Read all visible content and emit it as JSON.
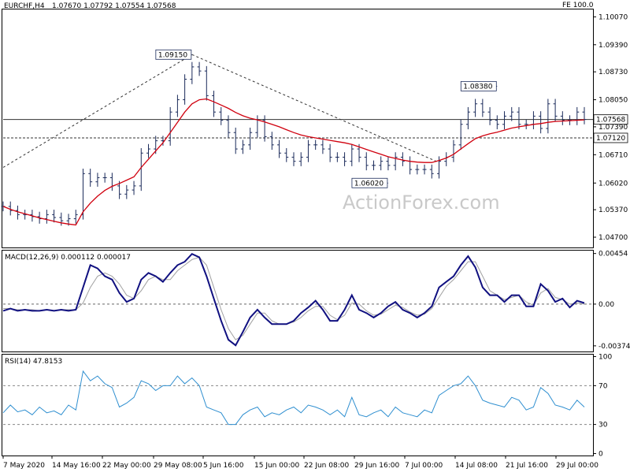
{
  "header": {
    "symbol": "EURCHF,H4",
    "ohlc": "1.07670 1.07792 1.07554 1.07568",
    "corner": "FE 100.0"
  },
  "watermark": "ActionForex.com",
  "colors": {
    "price": "#1a2a5a",
    "ma": "#d0000e",
    "macd": "#101080",
    "signal": "#a0a0a0",
    "rsi": "#2f8fd0",
    "levelLine": "#333333"
  },
  "chart_data": [
    {
      "type": "line",
      "panel": "price",
      "ylim": [
        1.0445,
        1.1025
      ],
      "y_ticks": [
        "1.10070",
        "1.09390",
        "1.08730",
        "1.08050",
        "1.07390",
        "1.06710",
        "1.06020",
        "1.05370",
        "1.04700"
      ],
      "annotations": [
        {
          "label": "1.09150",
          "value": 1.0915
        },
        {
          "label": "1.08380",
          "value": 1.0838
        },
        {
          "label": "1.06020",
          "value": 1.0602
        }
      ],
      "levels": [
        {
          "label": "1.07568",
          "value": 1.07568
        },
        {
          "label": "1.07120",
          "value": 1.0712
        }
      ],
      "series": [
        {
          "values": [
            1.0545,
            1.0535,
            1.0525,
            1.0525,
            1.052,
            1.0515,
            1.0525,
            1.0518,
            1.051,
            1.0515,
            1.0525,
            1.0625,
            1.0605,
            1.0615,
            1.0615,
            1.0595,
            1.0575,
            1.0585,
            1.0595,
            1.0675,
            1.0685,
            1.0705,
            1.0705,
            1.0775,
            1.0805,
            1.0855,
            1.0885,
            1.0875,
            1.0815,
            1.0775,
            1.0755,
            1.0725,
            1.0685,
            1.0695,
            1.0725,
            1.0755,
            1.0715,
            1.0695,
            1.0675,
            1.0665,
            1.0655,
            1.0665,
            1.0695,
            1.0695,
            1.0685,
            1.0665,
            1.0665,
            1.0655,
            1.0685,
            1.0665,
            1.0645,
            1.0645,
            1.0655,
            1.0645,
            1.0665,
            1.0655,
            1.0635,
            1.0635,
            1.0635,
            1.0625,
            1.0655,
            1.0665,
            1.0695,
            1.0745,
            1.0775,
            1.0795,
            1.0775,
            1.0755,
            1.0745,
            1.0765,
            1.0775,
            1.0745,
            1.0745,
            1.0765,
            1.0735,
            1.0795,
            1.0765,
            1.0755,
            1.0755,
            1.0775,
            1.0757
          ]
        },
        {
          "values": [
            1.0545,
            1.0538,
            1.0532,
            1.0527,
            1.0522,
            1.0517,
            1.0513,
            1.0509,
            1.0505,
            1.0502,
            1.05,
            1.0532,
            1.0553,
            1.057,
            1.0584,
            1.0594,
            1.0601,
            1.0609,
            1.0617,
            1.064,
            1.066,
            1.068,
            1.07,
            1.0725,
            1.075,
            1.0775,
            1.0795,
            1.0805,
            1.0807,
            1.08,
            1.0792,
            1.0784,
            1.0774,
            1.0766,
            1.076,
            1.0756,
            1.0751,
            1.0745,
            1.0739,
            1.0732,
            1.0725,
            1.0719,
            1.0715,
            1.0712,
            1.0709,
            1.0706,
            1.0703,
            1.07,
            1.0696,
            1.069,
            1.0684,
            1.0678,
            1.0672,
            1.0666,
            1.0662,
            1.0658,
            1.0655,
            1.0653,
            1.0652,
            1.0652,
            1.0657,
            1.0663,
            1.0672,
            1.0685,
            1.0698,
            1.071,
            1.0717,
            1.0722,
            1.0726,
            1.0731,
            1.0736,
            1.0739,
            1.0742,
            1.0745,
            1.0747,
            1.075,
            1.0752,
            1.0753,
            1.0754,
            1.0755,
            1.0756
          ]
        }
      ]
    },
    {
      "type": "line",
      "panel": "macd",
      "title": "MACD(12,26,9) 0.000112 0.000017",
      "ylim": [
        -0.00425,
        0.0048
      ],
      "y_ticks": [
        "0.00454",
        "0.00",
        "-0.003745"
      ],
      "series": [
        {
          "values": [
            -0.0006,
            -0.0004,
            -0.0006,
            -0.0005,
            -0.0006,
            -0.0006,
            -0.0005,
            -0.0006,
            -0.0005,
            -0.0006,
            -0.0005,
            0.0015,
            0.0035,
            0.0032,
            0.0025,
            0.0022,
            0.001,
            0.0002,
            0.0005,
            0.0022,
            0.0028,
            0.0025,
            0.002,
            0.0028,
            0.0035,
            0.0038,
            0.0045,
            0.0042,
            0.0025,
            0.0005,
            -0.0015,
            -0.0032,
            -0.0037,
            -0.0025,
            -0.0012,
            -0.0005,
            -0.0012,
            -0.0018,
            -0.0018,
            -0.0018,
            -0.0015,
            -0.0008,
            -0.0003,
            0.0003,
            -0.0005,
            -0.0015,
            -0.0015,
            -0.0005,
            0.0008,
            -0.0005,
            -0.0008,
            -0.0012,
            -0.0008,
            -0.0002,
            0.0002,
            -0.0005,
            -0.0008,
            -0.0012,
            -0.0008,
            -0.0002,
            0.0015,
            0.002,
            0.0025,
            0.0035,
            0.0043,
            0.0033,
            0.0015,
            0.0008,
            0.0008,
            0.0002,
            0.0008,
            0.0008,
            -0.0002,
            -0.0002,
            0.0018,
            0.0012,
            0.0002,
            0.0005,
            -0.0003,
            0.0003,
            0.0001
          ]
        },
        {
          "values": [
            -0.0004,
            -0.0004,
            -0.0005,
            -0.0005,
            -0.0005,
            -0.0006,
            -0.0005,
            -0.0006,
            -0.0005,
            -0.0005,
            -0.0005,
            0.0001,
            0.0015,
            0.0025,
            0.0028,
            0.0025,
            0.0018,
            0.0008,
            0.0005,
            0.0012,
            0.0022,
            0.0025,
            0.0022,
            0.0022,
            0.003,
            0.0035,
            0.004,
            0.0042,
            0.0035,
            0.0015,
            -0.0005,
            -0.0022,
            -0.0032,
            -0.0028,
            -0.0018,
            -0.0008,
            -0.0008,
            -0.0015,
            -0.0018,
            -0.0018,
            -0.0016,
            -0.0012,
            -0.0006,
            -0.0002,
            -0.0002,
            -0.001,
            -0.0014,
            -0.001,
            0.0001,
            0.0,
            -0.0006,
            -0.001,
            -0.0009,
            -0.0005,
            -0.0001,
            -0.0003,
            -0.0007,
            -0.001,
            -0.0009,
            -0.0004,
            0.0006,
            0.0016,
            0.0022,
            0.003,
            0.0038,
            0.0038,
            0.0025,
            0.0012,
            0.0008,
            0.0004,
            0.0006,
            0.0008,
            0.0002,
            -0.0001,
            0.001,
            0.0014,
            0.0006,
            0.0004,
            0.0,
            0.0001,
            0.0
          ]
        }
      ]
    },
    {
      "type": "line",
      "panel": "rsi",
      "title": "RSI(14) 47.8153",
      "ylim": [
        -2,
        102
      ],
      "y_ticks": [
        "100",
        "70",
        "30",
        "0"
      ],
      "levels": [
        70,
        30
      ],
      "series": [
        {
          "values": [
            42,
            50,
            43,
            45,
            40,
            48,
            42,
            44,
            40,
            50,
            45,
            85,
            75,
            80,
            72,
            68,
            48,
            52,
            58,
            75,
            72,
            65,
            70,
            70,
            80,
            72,
            78,
            70,
            48,
            45,
            42,
            30,
            30,
            40,
            45,
            48,
            38,
            42,
            40,
            45,
            48,
            42,
            50,
            48,
            45,
            40,
            45,
            38,
            58,
            40,
            38,
            42,
            45,
            38,
            48,
            42,
            40,
            38,
            45,
            42,
            60,
            65,
            70,
            72,
            80,
            70,
            55,
            52,
            50,
            48,
            58,
            55,
            45,
            48,
            68,
            62,
            50,
            48,
            45,
            55,
            48
          ]
        }
      ]
    }
  ],
  "x_axis": {
    "labels": [
      "7 May 2020",
      "14 May 16:00",
      "22 May 00:00",
      "29 May 08:00",
      "5 Jun 16:00",
      "15 Jun 00:00",
      "22 Jun 08:00",
      "29 Jun 16:00",
      "7 Jul 00:00",
      "14 Jul 08:00",
      "21 Jul 16:00",
      "29 Jul 00:00"
    ]
  }
}
